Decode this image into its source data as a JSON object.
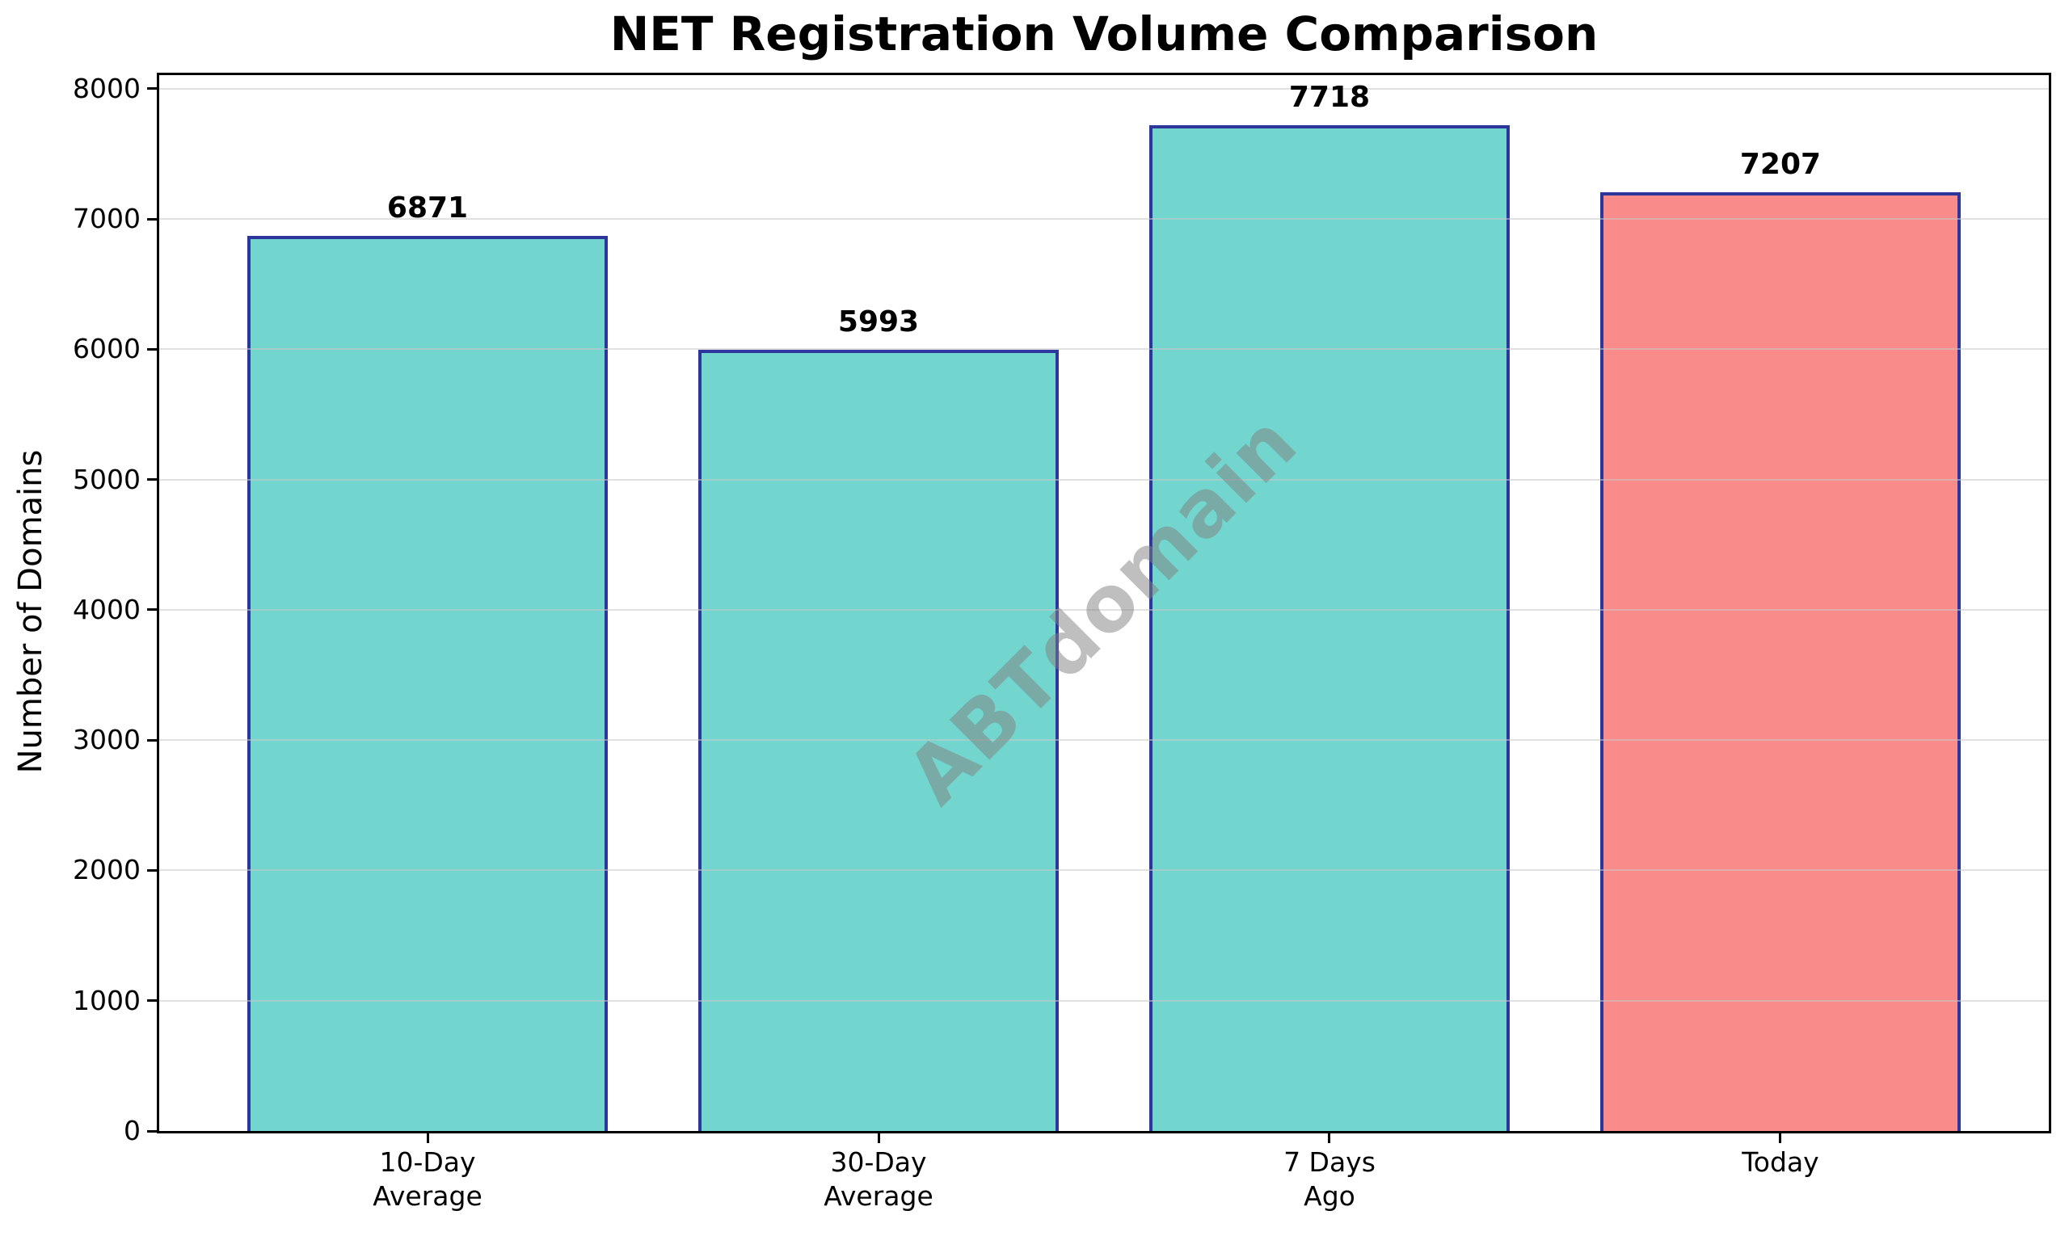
{
  "chart_data": {
    "type": "bar",
    "title": "NET Registration Volume Comparison",
    "ylabel": "Number of Domains",
    "xlabel": "",
    "categories": [
      "10-Day\nAverage",
      "30-Day\nAverage",
      "7 Days\nAgo",
      "Today"
    ],
    "values": [
      6871,
      5993,
      7718,
      7207
    ],
    "data_labels": [
      "6871",
      "5993",
      "7718",
      "7207"
    ],
    "bar_colors": [
      "#72d5ce",
      "#72d5ce",
      "#72d5ce",
      "#fa8b8b"
    ],
    "bar_edge_color": "#2d379b",
    "ylim": [
      0,
      8104
    ],
    "yticks": [
      0,
      1000,
      2000,
      3000,
      4000,
      5000,
      6000,
      7000,
      8000
    ],
    "xlim": [
      -0.595,
      3.595
    ],
    "bar_width": 0.8,
    "grid": "horizontal",
    "grid_color": "#c8c8c8",
    "axis_color": "#000000",
    "text_color": "#000000",
    "legend": null,
    "watermark": "ABTdomain",
    "watermark_color": "#808080",
    "watermark_rotation_deg": -45
  }
}
